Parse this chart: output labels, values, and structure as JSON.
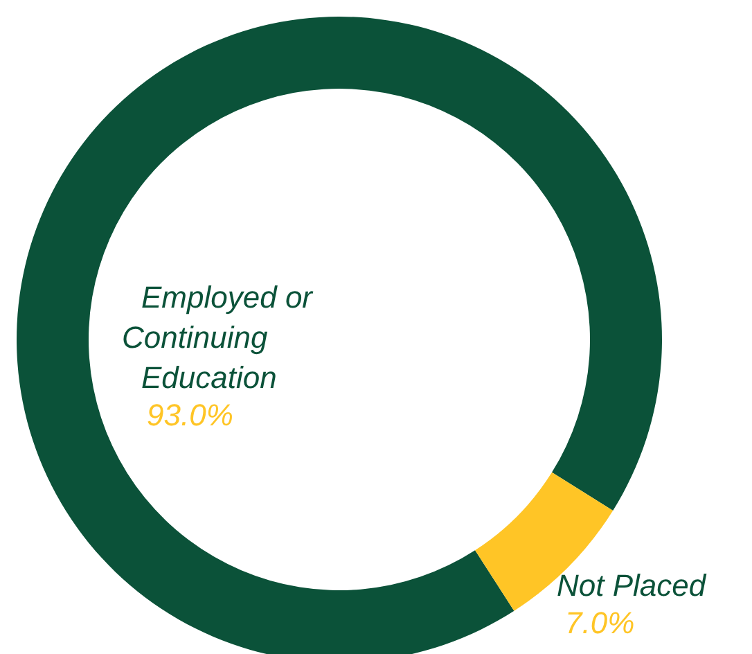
{
  "chart_data": {
    "type": "donut",
    "categories": [
      "Employed or Continuing Education",
      "Not Placed"
    ],
    "values": [
      93,
      7
    ],
    "value_labels": [
      "93.0%",
      "7.0%"
    ],
    "colors": [
      "#0b5239",
      "#ffc526"
    ]
  }
}
